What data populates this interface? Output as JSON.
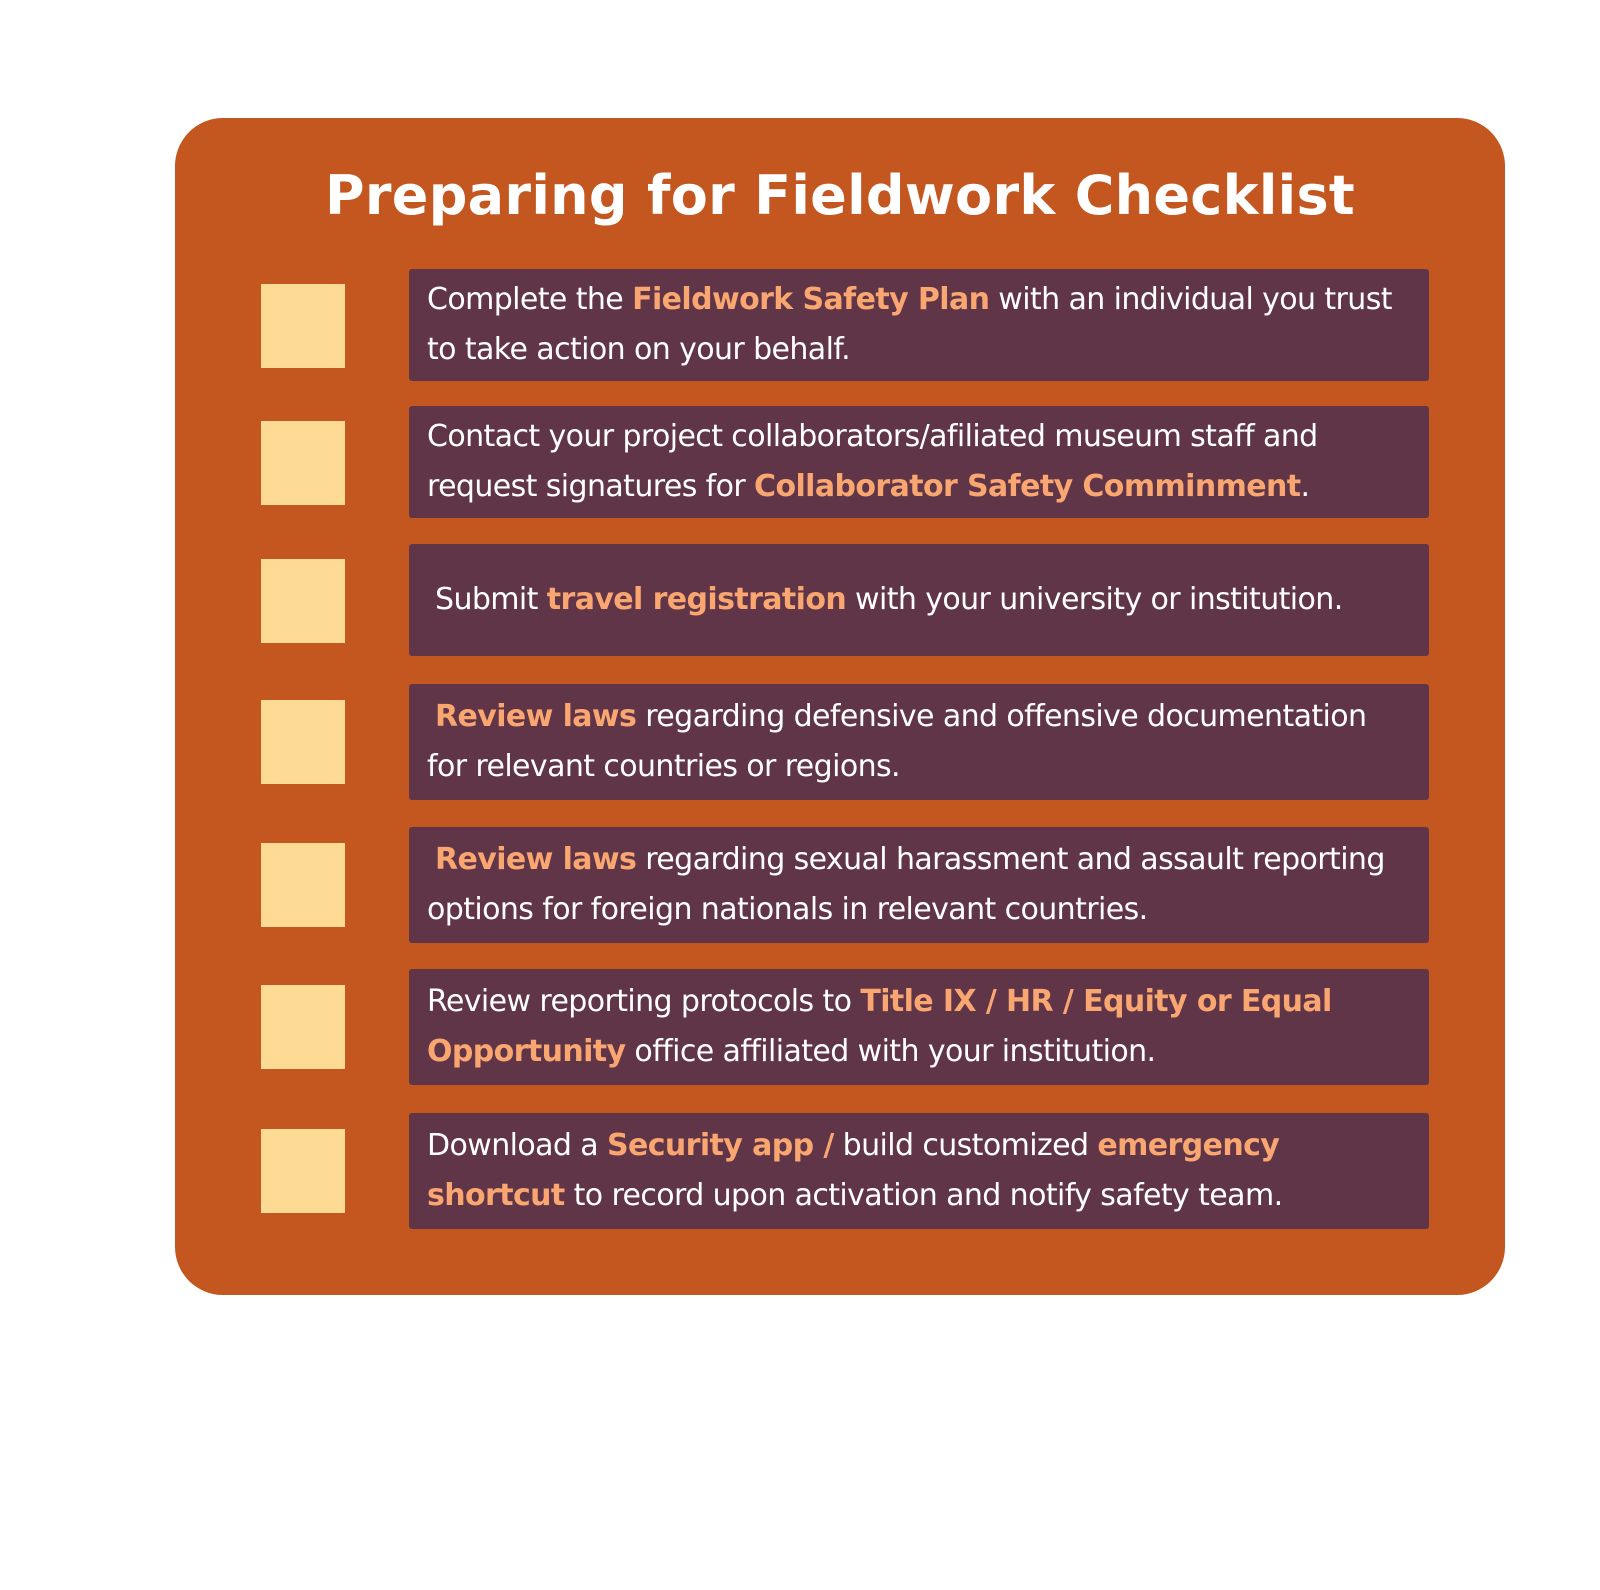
{
  "title": "Preparing for Fieldwork Checklist",
  "colors": {
    "card_background": "#c4561f",
    "item_background": "#613548",
    "checkbox_fill": "#fddb94",
    "highlight_text": "#f9a671",
    "body_text": "#ffffff"
  },
  "items": [
    {
      "checked": false,
      "parts": [
        {
          "text": "Complete the ",
          "highlight": false
        },
        {
          "text": "Fieldwork Safety Plan",
          "highlight": true
        },
        {
          "text": " with an individual you trust to take action on your behalf.",
          "highlight": false
        }
      ]
    },
    {
      "checked": false,
      "parts": [
        {
          "text": "Contact your project collaborators/afiliated museum staff and request signatures for ",
          "highlight": false
        },
        {
          "text": "Collaborator Safety Comminment",
          "highlight": true
        },
        {
          "text": ".",
          "highlight": false
        }
      ]
    },
    {
      "checked": false,
      "parts": [
        {
          "text": "Submit ",
          "highlight": false
        },
        {
          "text": "travel registration",
          "highlight": true
        },
        {
          "text": " with your university or institution.",
          "highlight": false
        }
      ]
    },
    {
      "checked": false,
      "parts": [
        {
          "text": "Review laws",
          "highlight": true
        },
        {
          "text": " regarding defensive and offensive documentation for relevant countries or regions.",
          "highlight": false
        }
      ]
    },
    {
      "checked": false,
      "parts": [
        {
          "text": "Review laws",
          "highlight": true
        },
        {
          "text": " regarding sexual harassment and assault reporting options for foreign nationals in relevant countries.",
          "highlight": false
        }
      ]
    },
    {
      "checked": false,
      "parts": [
        {
          "text": "Review reporting protocols to ",
          "highlight": false
        },
        {
          "text": "Title IX / HR / Equity or Equal Opportunity",
          "highlight": true
        },
        {
          "text": " office affiliated with your institution.",
          "highlight": false
        }
      ]
    },
    {
      "checked": false,
      "parts": [
        {
          "text": "Download a ",
          "highlight": false
        },
        {
          "text": "Security app /",
          "highlight": true
        },
        {
          "text": " build customized ",
          "highlight": false
        },
        {
          "text": "emergency shortcut",
          "highlight": true
        },
        {
          "text": " to record upon activation and notify safety team.",
          "highlight": false
        }
      ]
    }
  ]
}
